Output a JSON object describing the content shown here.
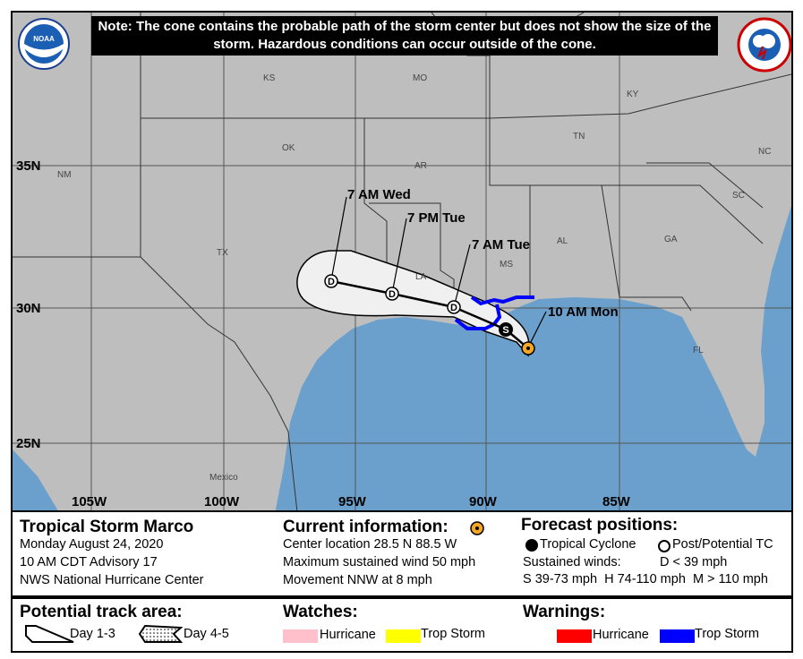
{
  "note": "Note: The cone contains the probable path of the storm center but does not show the size of the storm. Hazardous conditions can occur outside of the cone.",
  "logos": {
    "left": "NOAA",
    "right": "NATIONAL WEATHER SERVICE"
  },
  "map": {
    "lat_labels": [
      "35N",
      "30N",
      "25N"
    ],
    "lon_labels": [
      "105W",
      "100W",
      "95W",
      "90W",
      "85W"
    ],
    "state_labels": [
      "KS",
      "MO",
      "KY",
      "OK",
      "NM",
      "AR",
      "TN",
      "NC",
      "SC",
      "TX",
      "MS",
      "AL",
      "GA",
      "LA",
      "FL",
      "Mexico"
    ],
    "forecast_points": [
      {
        "time": "10 AM Mon",
        "symbol": "current",
        "lat": 28.5,
        "lon": -88.5
      },
      {
        "time": "",
        "symbol": "S"
      },
      {
        "time": "7 AM Tue",
        "symbol": "D"
      },
      {
        "time": "7 PM Tue",
        "symbol": "D"
      },
      {
        "time": "7 AM Wed",
        "symbol": "D"
      }
    ],
    "colors": {
      "land": "#bebebe",
      "water": "#6ca0cc",
      "cone": "#f0f0f0",
      "trop_storm_warning": "#0000ff",
      "current": "#f5a623"
    }
  },
  "info": {
    "storm_name": "Tropical Storm Marco",
    "date": "Monday August 24, 2020",
    "advisory": "10 AM CDT Advisory 17",
    "center": "NWS National Hurricane Center",
    "current_title": "Current information:",
    "location": "Center location 28.5 N 88.5 W",
    "wind": "Maximum sustained wind 50 mph",
    "movement": "Movement NNW at 8 mph",
    "forecast_title": "Forecast positions:",
    "tc": "Tropical Cyclone",
    "post_tc": "Post/Potential TC",
    "sustained": "Sustained winds:",
    "d": "D < 39 mph",
    "shm": "S 39-73 mph  H 74-110 mph  M > 110 mph"
  },
  "legend": {
    "track_title": "Potential track area:",
    "day13": "Day 1-3",
    "day45": "Day 4-5",
    "watches_title": "Watches:",
    "watch_hurricane": "Hurricane",
    "watch_ts": "Trop Storm",
    "warnings_title": "Warnings:",
    "warn_hurricane": "Hurricane",
    "warn_ts": "Trop Storm",
    "colors": {
      "watch_hurricane": "#ffc0cb",
      "watch_ts": "#ffff00",
      "warn_hurricane": "#ff0000",
      "warn_ts": "#0000ff"
    }
  }
}
